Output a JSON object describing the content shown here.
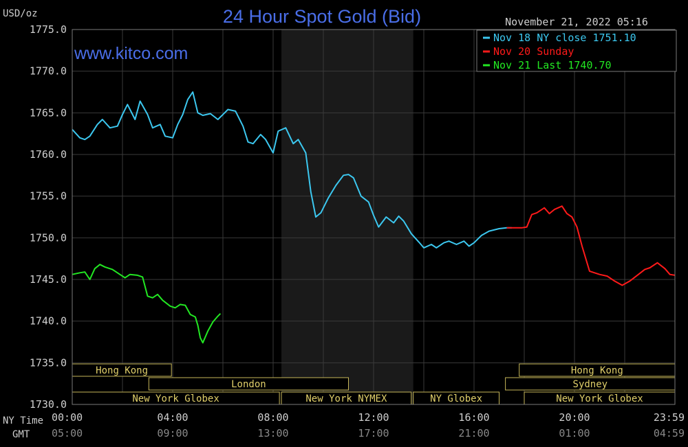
{
  "header": {
    "unit": "USD/oz",
    "title": "24 Hour Spot Gold (Bid)",
    "timestamp": "November 21, 2022 05:16",
    "website": "www.kitco.com"
  },
  "legend": [
    {
      "text": "Nov 18 NY close 1751.10",
      "color": "#3cc8f0"
    },
    {
      "text": "Nov 20 Sunday",
      "color": "#ff1a1a"
    },
    {
      "text": "Nov 21 Last 1740.70",
      "color": "#22e822"
    }
  ],
  "axis_labels": {
    "ny_time": "NY Time",
    "gmt": "GMT"
  },
  "sessions": {
    "row1": [
      {
        "label": "Hong Kong",
        "start": 0,
        "end": 3.95
      },
      {
        "label": "Hong Kong",
        "start": 17.8,
        "end": 24
      }
    ],
    "row2": [
      {
        "label": "London",
        "start": 3.05,
        "end": 11.0
      },
      {
        "label": "Sydney",
        "start": 17.25,
        "end": 24
      }
    ],
    "row3": [
      {
        "label": "New York Globex",
        "start": 0,
        "end": 8.25
      },
      {
        "label": "New York NYMEX",
        "start": 8.33,
        "end": 13.5
      },
      {
        "label": "NY Globex",
        "start": 13.58,
        "end": 17.0
      },
      {
        "label": "New York Globex",
        "start": 18.0,
        "end": 24
      }
    ]
  },
  "chart_data": {
    "type": "line",
    "ylim": [
      1730,
      1775
    ],
    "xlim": [
      0,
      24
    ],
    "y_ticks": [
      "1775.0",
      "1770.0",
      "1765.0",
      "1760.0",
      "1755.0",
      "1750.0",
      "1745.0",
      "1740.0",
      "1735.0",
      "1730.0"
    ],
    "x_ticks_ny": [
      "00:00",
      "04:00",
      "08:00",
      "12:00",
      "16:00",
      "20:00",
      "23:59"
    ],
    "x_ticks_gmt": [
      "05:00",
      "09:00",
      "13:00",
      "17:00",
      "21:00",
      "01:00",
      "04:59"
    ],
    "shaded_range": [
      8.33,
      13.58
    ],
    "grid": true,
    "series": [
      {
        "name": "Nov 18 NY close 1751.10",
        "color": "#3cc8f0",
        "x": [
          0,
          0.3,
          0.5,
          0.7,
          1.0,
          1.2,
          1.5,
          1.8,
          2.0,
          2.2,
          2.5,
          2.7,
          3.0,
          3.2,
          3.5,
          3.7,
          4.0,
          4.2,
          4.4,
          4.6,
          4.8,
          5.0,
          5.2,
          5.5,
          5.8,
          6.0,
          6.2,
          6.5,
          6.8,
          7.0,
          7.2,
          7.5,
          7.7,
          8.0,
          8.2,
          8.5,
          8.8,
          9.0,
          9.3,
          9.5,
          9.7,
          9.9,
          10.2,
          10.5,
          10.8,
          11.0,
          11.2,
          11.5,
          11.8,
          12.0,
          12.2,
          12.5,
          12.8,
          13.0,
          13.2,
          13.5,
          13.8,
          14.0,
          14.3,
          14.5,
          14.8,
          15.0,
          15.3,
          15.6,
          15.8,
          16.0,
          16.3,
          16.6,
          17.0,
          17.3,
          17.5
        ],
        "y": [
          1763.0,
          1762.0,
          1761.8,
          1762.2,
          1763.6,
          1764.2,
          1763.2,
          1763.4,
          1764.8,
          1766.0,
          1764.2,
          1766.4,
          1764.8,
          1763.2,
          1763.6,
          1762.2,
          1762.0,
          1763.6,
          1764.8,
          1766.6,
          1767.5,
          1765.0,
          1764.7,
          1764.9,
          1764.2,
          1764.8,
          1765.4,
          1765.2,
          1763.4,
          1761.5,
          1761.3,
          1762.4,
          1761.8,
          1760.2,
          1762.8,
          1763.2,
          1761.3,
          1761.8,
          1760.2,
          1755.5,
          1752.5,
          1753.0,
          1754.8,
          1756.3,
          1757.5,
          1757.6,
          1757.2,
          1755.0,
          1754.3,
          1752.7,
          1751.3,
          1752.5,
          1751.8,
          1752.6,
          1752.0,
          1750.5,
          1749.5,
          1748.8,
          1749.2,
          1748.8,
          1749.4,
          1749.6,
          1749.2,
          1749.6,
          1749.0,
          1749.4,
          1750.3,
          1750.8,
          1751.1,
          1751.2,
          1751.2
        ]
      },
      {
        "name": "Nov 20 Sunday",
        "color": "#ff1a1a",
        "x": [
          17.3,
          17.6,
          17.9,
          18.1,
          18.3,
          18.5,
          18.8,
          19.0,
          19.2,
          19.5,
          19.7,
          19.9,
          20.1,
          20.3,
          20.6,
          20.8,
          21.0,
          21.3,
          21.6,
          21.9,
          22.2,
          22.5,
          22.8,
          23.0,
          23.3,
          23.6,
          23.8,
          24.0
        ],
        "y": [
          1751.2,
          1751.2,
          1751.2,
          1751.3,
          1752.8,
          1753.0,
          1753.6,
          1752.9,
          1753.4,
          1753.8,
          1752.9,
          1752.5,
          1751.3,
          1749.0,
          1746.0,
          1745.8,
          1745.6,
          1745.4,
          1744.8,
          1744.3,
          1744.8,
          1745.5,
          1746.2,
          1746.4,
          1747.0,
          1746.3,
          1745.6,
          1745.5
        ]
      },
      {
        "name": "Nov 21 Last 1740.70",
        "color": "#22e822",
        "x": [
          0,
          0.3,
          0.5,
          0.7,
          0.9,
          1.1,
          1.3,
          1.6,
          1.9,
          2.1,
          2.3,
          2.6,
          2.8,
          3.0,
          3.2,
          3.4,
          3.6,
          3.9,
          4.1,
          4.3,
          4.5,
          4.7,
          4.9,
          5.0,
          5.1,
          5.2,
          5.4,
          5.6,
          5.8,
          5.9
        ],
        "y": [
          1745.6,
          1745.8,
          1745.9,
          1745.0,
          1746.3,
          1746.8,
          1746.5,
          1746.2,
          1745.6,
          1745.2,
          1745.6,
          1745.5,
          1745.3,
          1743.0,
          1742.8,
          1743.2,
          1742.5,
          1741.8,
          1741.6,
          1742.0,
          1741.9,
          1740.8,
          1740.5,
          1739.5,
          1738.0,
          1737.4,
          1738.8,
          1739.9,
          1740.6,
          1740.9
        ]
      }
    ]
  }
}
